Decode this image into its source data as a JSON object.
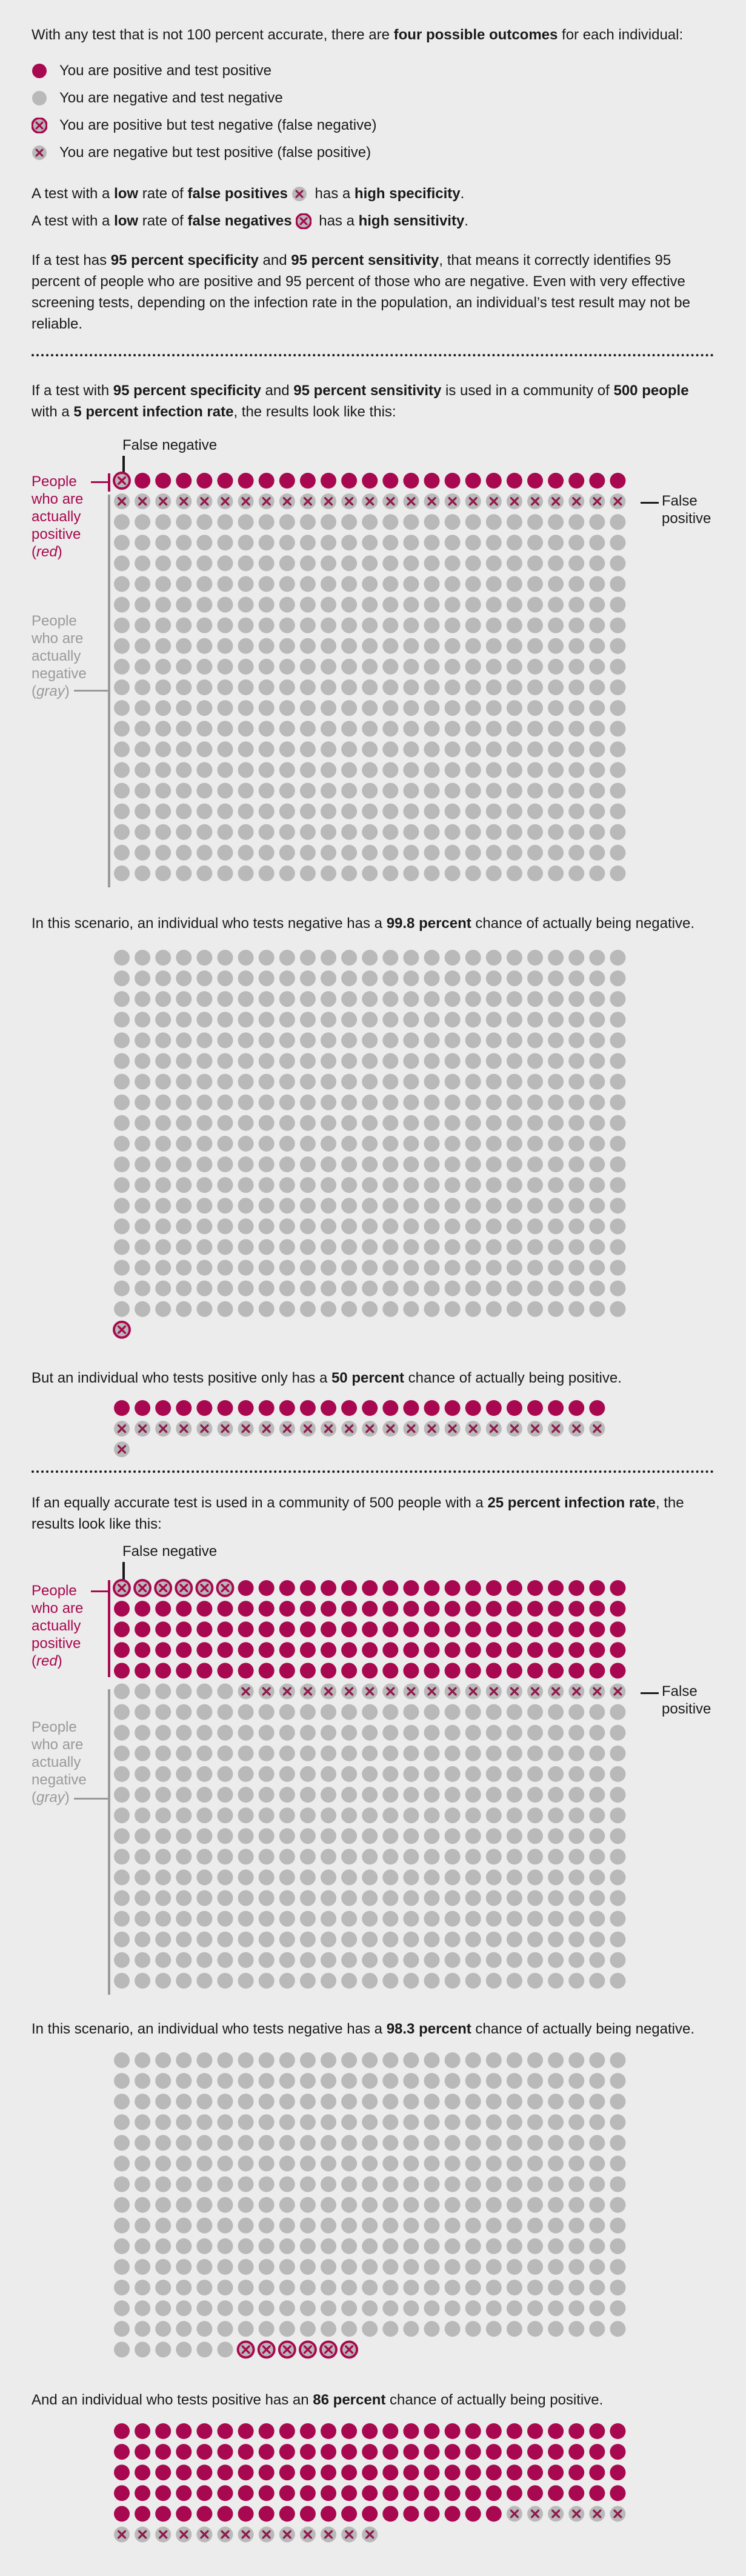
{
  "colors": {
    "positive": "#a8084f",
    "negative": "#b9b9b9",
    "background": "#ececec",
    "label_gray": "#9a9a9a"
  },
  "intro": {
    "p1_a": "With any test that is not 100 percent accurate, there are ",
    "p1_b": "four possible outcomes",
    "p1_c": " for each individual:"
  },
  "legend": [
    {
      "type": "TP",
      "label": "You are positive and test positive",
      "icon": "red-dot-icon"
    },
    {
      "type": "TN",
      "label": "You are negative and test negative",
      "icon": "gray-dot-icon"
    },
    {
      "type": "FN",
      "label": "You are positive but test negative (false negative)",
      "icon": "red-x-dot-icon"
    },
    {
      "type": "FP",
      "label": "You are negative but test positive (false positive)",
      "icon": "gray-x-dot-icon"
    }
  ],
  "spec_line": {
    "a": "A test with a ",
    "b": "low",
    "c": " rate of ",
    "d": "false positives",
    "e": " has a ",
    "f": "high specificity",
    "g": "."
  },
  "sens_line": {
    "a": "A test with a ",
    "b": "low",
    "c": " rate of ",
    "d": "false negatives",
    "e": " has a ",
    "f": "high sensitivity",
    "g": "."
  },
  "explain": {
    "a": "If a test has ",
    "b": "95 percent specificity",
    "c": " and ",
    "d": "95 percent sensitivity",
    "e": ", that means it correctly identifies 95 percent of people who are positive and 95 percent of those who are negative. Even with very effective screening tests, depending on the infection rate in the population, an individual’s test result may not be reliable."
  },
  "scenario1": {
    "intro_a": "If a test with ",
    "intro_b": "95 percent specificity",
    "intro_c": " and ",
    "intro_d": "95 percent sensitivity",
    "intro_e": " is used in a community of ",
    "intro_f": "500 people",
    "intro_g": " with a ",
    "intro_h": "5 percent infection rate",
    "intro_i": ", the results look like this:",
    "false_negative_label": "False negative",
    "false_positive_label": "False positive",
    "positive_label_a": "People who are actually positive (",
    "positive_label_em": "red",
    "positive_label_b": ")",
    "negative_label_a": "People who are actually negative (",
    "negative_label_em": "gray",
    "negative_label_b": ")",
    "neg_text_a": "In this scenario, an individual who tests negative has a ",
    "neg_text_b": "99.8 percent",
    "neg_text_c": " chance of actually being negative.",
    "pos_text_a": "But an individual who tests positive only has a ",
    "pos_text_b": "50 percent",
    "pos_text_c": " chance of actually being positive."
  },
  "scenario2": {
    "intro_a": "If an equally accurate test is used in a community of 500 people with a ",
    "intro_b": "25 percent infection rate",
    "intro_c": ", the results look like this:",
    "false_negative_label": "False negative",
    "false_positive_label": "False positive",
    "positive_label_a": "People who are actually positive (",
    "positive_label_em": "red",
    "positive_label_b": ")",
    "negative_label_a": "People who are actually negative (",
    "negative_label_em": "gray",
    "negative_label_b": ")",
    "neg_text_a": "In this scenario, an individual who tests negative has a ",
    "neg_text_b": "98.3 percent",
    "neg_text_c": " chance of actually being negative.",
    "pos_text_a": "And an individual who tests positive has an ",
    "pos_text_b": "86 percent",
    "pos_text_c": " chance of actually being positive."
  },
  "chart_data": [
    {
      "type": "waffle",
      "scenario": "5 percent infection rate, 500 people",
      "columns": 25,
      "segments": [
        {
          "kind": "FN",
          "count": 1
        },
        {
          "kind": "TP",
          "count": 24
        },
        {
          "kind": "FP",
          "count": 25
        },
        {
          "kind": "TN",
          "count": 450
        }
      ]
    },
    {
      "type": "waffle",
      "scenario": "5 percent infection rate, tested negative",
      "columns": 25,
      "segments": [
        {
          "kind": "TN",
          "count": 450
        },
        {
          "kind": "FN",
          "count": 1
        }
      ]
    },
    {
      "type": "waffle",
      "scenario": "5 percent infection rate, tested positive",
      "columns": 24,
      "segments": [
        {
          "kind": "TP",
          "count": 24
        },
        {
          "kind": "FP",
          "count": 25
        }
      ]
    },
    {
      "type": "waffle",
      "scenario": "25 percent infection rate, 500 people",
      "columns": 25,
      "segments": [
        {
          "kind": "FN",
          "count": 6
        },
        {
          "kind": "TP",
          "count": 119
        },
        {
          "kind": "TN",
          "count": 6
        },
        {
          "kind": "FP",
          "count": 19
        },
        {
          "kind": "TN",
          "count": 350
        }
      ]
    },
    {
      "type": "waffle",
      "scenario": "25 percent infection rate, tested negative",
      "columns": 25,
      "segments": [
        {
          "kind": "TN",
          "count": 356
        },
        {
          "kind": "FN",
          "count": 6
        }
      ]
    },
    {
      "type": "waffle",
      "scenario": "25 percent infection rate, tested positive",
      "columns": 25,
      "segments": [
        {
          "kind": "TP",
          "count": 119
        },
        {
          "kind": "FP",
          "count": 19
        }
      ]
    }
  ]
}
